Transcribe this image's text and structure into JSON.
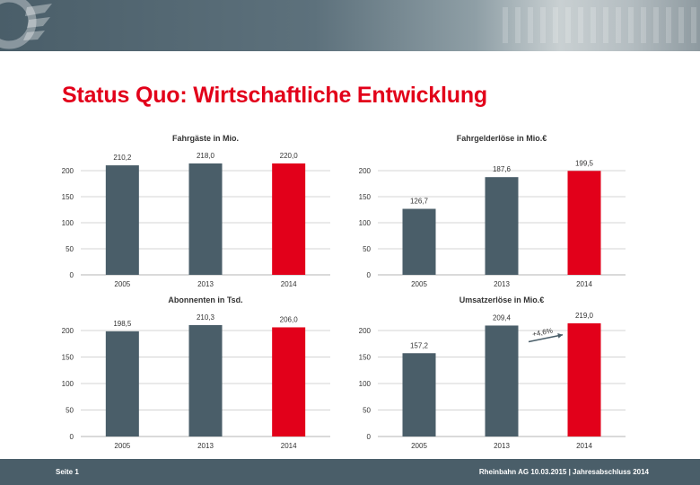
{
  "page": {
    "title": "Status Quo: Wirtschaftliche Entwicklung",
    "footer_left": "Seite 1",
    "footer_right": "Rheinbahn AG 10.03.2015  |  Jahresabschluss 2014"
  },
  "colors": {
    "bar_default": "#4a5e69",
    "bar_highlight": "#e2001a",
    "title": "#e2001a",
    "footer": "#4a5e69"
  },
  "chart_data": [
    {
      "type": "bar",
      "title": "Fahrgäste in Mio.",
      "categories": [
        "2005",
        "2013",
        "2014"
      ],
      "values": [
        210.2,
        218.0,
        220.0
      ],
      "value_labels": [
        "210,2",
        "218,0",
        "220,0"
      ],
      "highlight_index": 2,
      "ylim": [
        0,
        200
      ],
      "yticks": [
        "0",
        "50",
        "100",
        "150",
        "200"
      ],
      "grid": true
    },
    {
      "type": "bar",
      "title": "Fahrgelderlöse in Mio.€",
      "categories": [
        "2005",
        "2013",
        "2014"
      ],
      "values": [
        126.7,
        187.6,
        199.5
      ],
      "value_labels": [
        "126,7",
        "187,6",
        "199,5"
      ],
      "highlight_index": 2,
      "ylim": [
        0,
        200
      ],
      "yticks": [
        "0",
        "50",
        "100",
        "150",
        "200"
      ],
      "grid": true
    },
    {
      "type": "bar",
      "title": "Abonnenten in Tsd.",
      "categories": [
        "2005",
        "2013",
        "2014"
      ],
      "values": [
        198.5,
        210.3,
        206.0
      ],
      "value_labels": [
        "198,5",
        "210,3",
        "206,0"
      ],
      "highlight_index": 2,
      "ylim": [
        0,
        200
      ],
      "yticks": [
        "0",
        "50",
        "100",
        "150",
        "200"
      ],
      "grid": true
    },
    {
      "type": "bar",
      "title": "Umsatzerlöse in Mio.€",
      "categories": [
        "2005",
        "2013",
        "2014"
      ],
      "values": [
        157.2,
        209.4,
        219.0
      ],
      "value_labels": [
        "157,2",
        "209,4",
        "219,0"
      ],
      "highlight_index": 2,
      "ylim": [
        0,
        200
      ],
      "yticks": [
        "0",
        "50",
        "100",
        "150",
        "200"
      ],
      "grid": true,
      "annotation": {
        "text": "+4,6%",
        "between": [
          1,
          2
        ]
      }
    }
  ]
}
